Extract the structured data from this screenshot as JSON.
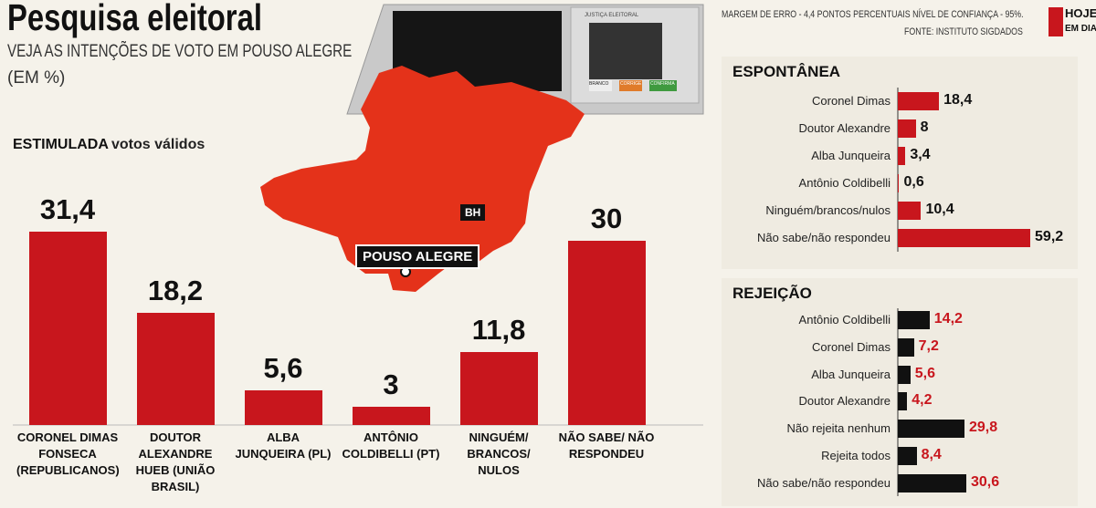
{
  "header": {
    "title": "Pesquisa eleitoral",
    "subtitle": "VEJA AS INTENÇÕES DE VOTO EM POUSO ALEGRE",
    "unit": "(EM %)",
    "margin_note": "MARGEM DE ERRO - 4,4 PONTOS PERCENTUAIS NÍVEL DE CONFIANÇA - 95%.",
    "source": "FONTE: INSTITUTO SIGDADOS",
    "logo_top": "HOJE",
    "logo_bottom": "EM DIA"
  },
  "machine": {
    "label": "JUSTIÇA ELEITORAL",
    "keys": [
      "BRANCO",
      "CORRIGE",
      "CONFIRMA"
    ]
  },
  "map": {
    "capital": "BH",
    "city": "POUSO ALEGRE"
  },
  "chart_data": [
    {
      "type": "bar",
      "title": "ESTIMULADA",
      "subtitle": "votos válidos",
      "categories": [
        "CORONEL DIMAS FONSECA (REPUBLICANOS)",
        "DOUTOR ALEXANDRE HUEB (UNIÃO BRASIL)",
        "ALBA JUNQUEIRA (PL)",
        "ANTÔNIO COLDIBELLI (PT)",
        "NINGUÉM/ BRANCOS/ NULOS",
        "NÃO SABE/ NÃO RESPONDEU"
      ],
      "values": [
        31.4,
        18.2,
        5.6,
        3,
        11.8,
        30
      ],
      "value_labels": [
        "31,4",
        "18,2",
        "5,6",
        "3",
        "11,8",
        "30"
      ],
      "color": "#c8161d"
    },
    {
      "type": "hbar",
      "title": "ESPONTÂNEA",
      "categories": [
        "Coronel Dimas",
        "Doutor Alexandre",
        "Alba Junqueira",
        "Antônio Coldibelli",
        "Ninguém/brancos/nulos",
        "Não sabe/não respondeu"
      ],
      "values": [
        18.4,
        8,
        3.4,
        0.6,
        10.4,
        59.2
      ],
      "value_labels": [
        "18,4",
        "8",
        "3,4",
        "0,6",
        "10,4",
        "59,2"
      ],
      "color": "#c8161d",
      "label_color": "#111111"
    },
    {
      "type": "hbar",
      "title": "REJEIÇÃO",
      "categories": [
        "Antônio Coldibelli",
        "Coronel Dimas",
        "Alba Junqueira",
        "Doutor Alexandre",
        "Não rejeita nenhum",
        "Rejeita todos",
        "Não sabe/não respondeu"
      ],
      "values": [
        14.2,
        7.2,
        5.6,
        4.2,
        29.8,
        8.4,
        30.6
      ],
      "value_labels": [
        "14,2",
        "7,2",
        "5,6",
        "4,2",
        "29,8",
        "8,4",
        "30,6"
      ],
      "color": "#111111",
      "label_color": "#c8161d"
    }
  ]
}
